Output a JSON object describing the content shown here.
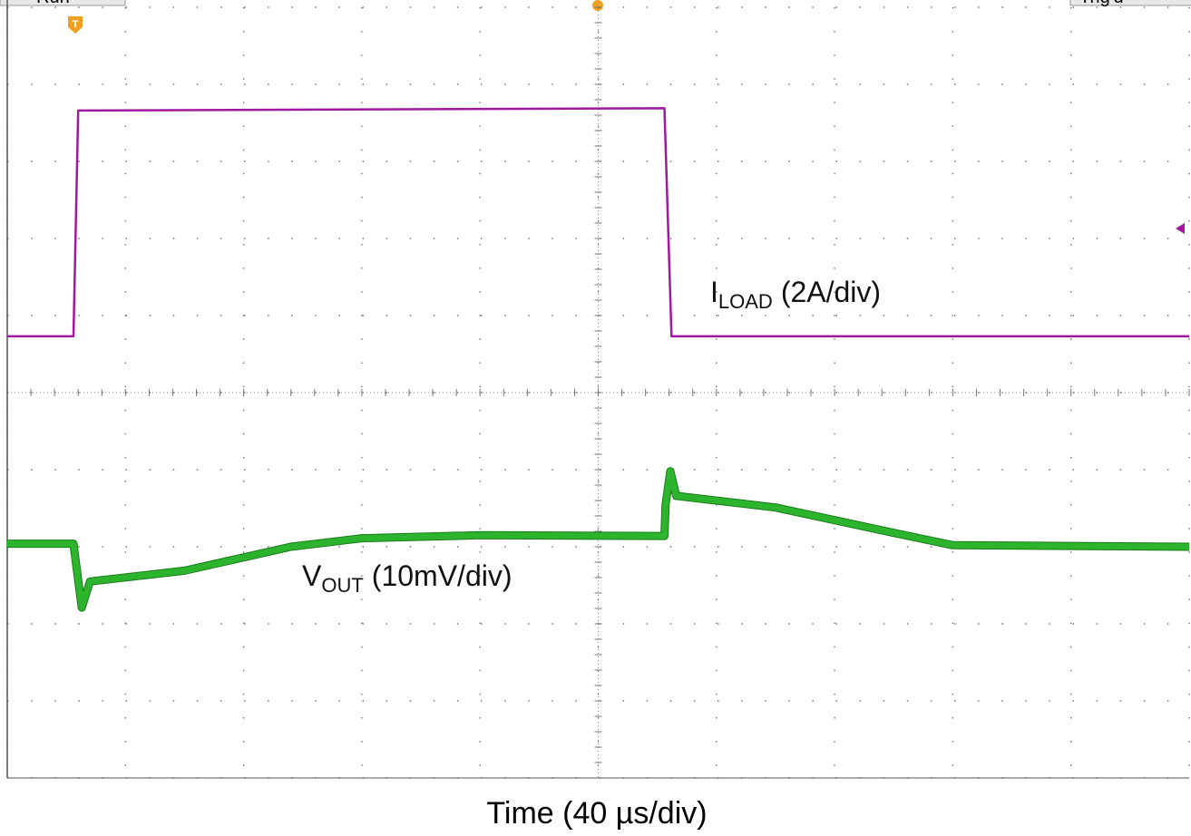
{
  "chart_data": {
    "type": "line",
    "status_left": "Run",
    "status_right": "Trig'd",
    "trigger_label": "T",
    "xlabel": "Time (40 µs/div)",
    "xlim": [
      0,
      10
    ],
    "ylim": [
      -5,
      5
    ],
    "grid": {
      "x_divisions": 10,
      "y_divisions": 10
    },
    "series": [
      {
        "label": "I",
        "label_sub": "LOAD",
        "label_rest": "(2A/div)",
        "color": "#a0189e",
        "x": [
          0,
          0.56,
          0.6,
          5.56,
          5.62,
          10
        ],
        "values": [
          0.73,
          0.73,
          3.66,
          3.69,
          0.73,
          0.73
        ]
      },
      {
        "label": "V",
        "label_sub": "OUT",
        "label_rest": "(10mV/div)",
        "color": "#2cb52c",
        "x": [
          0,
          0.56,
          0.63,
          0.7,
          1.5,
          2.4,
          3.0,
          4.0,
          5.56,
          5.57,
          5.61,
          5.66,
          6.5,
          7.5,
          8.0,
          10
        ],
        "values": [
          -1.96,
          -1.96,
          -2.79,
          -2.45,
          -2.31,
          -2.0,
          -1.89,
          -1.85,
          -1.86,
          -1.45,
          -1.02,
          -1.34,
          -1.49,
          -1.82,
          -1.98,
          -2.0
        ]
      }
    ]
  }
}
